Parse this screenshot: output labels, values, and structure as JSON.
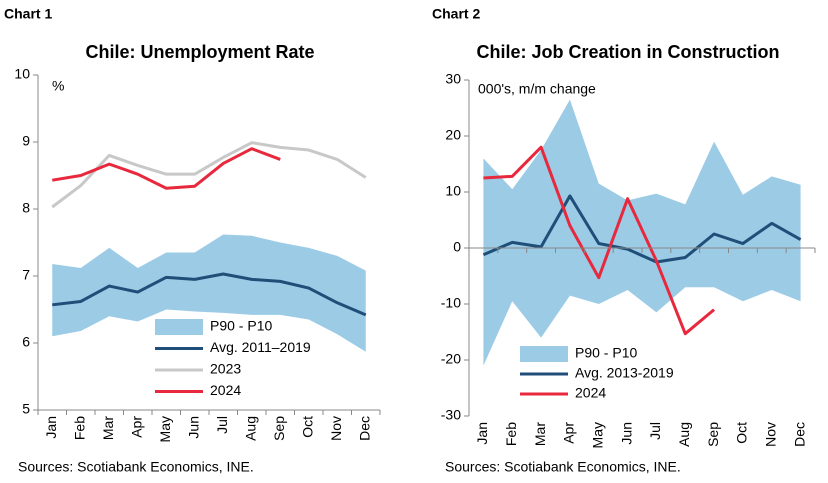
{
  "chart_data": [
    {
      "type": "line",
      "label": "Chart 1",
      "title": "Chile: Unemployment Rate",
      "unit_label": "%",
      "source": "Sources: Scotiabank Economics, INE.",
      "categories": [
        "Jan",
        "Feb",
        "Mar",
        "Apr",
        "May",
        "Jun",
        "Jul",
        "Aug",
        "Sep",
        "Oct",
        "Nov",
        "Dec"
      ],
      "ylim": [
        5,
        10
      ],
      "yticks": [
        5,
        6,
        7,
        8,
        9,
        10
      ],
      "series": [
        {
          "name": "P90 - P10",
          "type": "band",
          "color": "#9ccbe6",
          "upper": [
            7.18,
            7.12,
            7.42,
            7.12,
            7.35,
            7.35,
            7.62,
            7.6,
            7.5,
            7.42,
            7.3,
            7.08
          ],
          "lower": [
            6.1,
            6.18,
            6.4,
            6.32,
            6.5,
            6.47,
            6.45,
            6.42,
            6.42,
            6.35,
            6.13,
            5.87
          ]
        },
        {
          "name": "Avg. 2011–2019",
          "color": "#1f4e79",
          "values": [
            6.57,
            6.62,
            6.85,
            6.76,
            6.98,
            6.95,
            7.03,
            6.95,
            6.92,
            6.82,
            6.6,
            6.42
          ]
        },
        {
          "name": "2023",
          "color": "#c8c8c8",
          "values": [
            8.03,
            8.35,
            8.8,
            8.65,
            8.52,
            8.52,
            8.77,
            8.99,
            8.92,
            8.88,
            8.74,
            8.47
          ]
        },
        {
          "name": "2024",
          "color": "#e8283c",
          "values": [
            8.43,
            8.5,
            8.67,
            8.52,
            8.31,
            8.34,
            8.68,
            8.9,
            8.74,
            null,
            null,
            null
          ]
        }
      ]
    },
    {
      "type": "line",
      "label": "Chart 2",
      "title": "Chile: Job Creation in Construction",
      "unit_label": "000's, m/m change",
      "source": "Sources: Scotiabank Economics, INE.",
      "categories": [
        "Jan",
        "Feb",
        "Mar",
        "Apr",
        "May",
        "Jun",
        "Jul",
        "Aug",
        "Sep",
        "Oct",
        "Nov",
        "Dec"
      ],
      "ylim": [
        -30,
        30
      ],
      "yticks": [
        -30,
        -20,
        -10,
        0,
        10,
        20,
        30
      ],
      "series": [
        {
          "name": "P90 - P10",
          "type": "band",
          "color": "#9ccbe6",
          "upper": [
            16,
            10.5,
            17.5,
            26.5,
            11.5,
            8.5,
            9.7,
            7.8,
            19,
            9.5,
            12.8,
            11.3
          ],
          "lower": [
            -21,
            -9.5,
            -16,
            -8.5,
            -10,
            -7.5,
            -11.5,
            -7,
            -7,
            -9.5,
            -7.5,
            -9.5
          ]
        },
        {
          "name": "Avg. 2013-2019",
          "color": "#1f4e79",
          "values": [
            -1.2,
            1,
            0.2,
            9.3,
            0.8,
            -0.2,
            -2.5,
            -1.7,
            2.5,
            0.8,
            4.4,
            1.5
          ]
        },
        {
          "name": "2024",
          "color": "#e8283c",
          "values": [
            12.5,
            12.8,
            18,
            4,
            -5.3,
            8.8,
            -2.3,
            -15.3,
            -11,
            null,
            null,
            null
          ]
        }
      ]
    }
  ]
}
